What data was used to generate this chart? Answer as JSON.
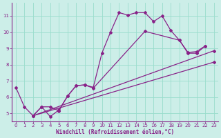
{
  "bg_color": "#cceee8",
  "grid_color": "#99ddcc",
  "line_color": "#882288",
  "spine_color": "#882288",
  "xlabel": "Windchill (Refroidissement éolien,°C)",
  "xlim": [
    -0.5,
    23.5
  ],
  "ylim": [
    4.5,
    11.8
  ],
  "xticks": [
    0,
    1,
    2,
    3,
    4,
    5,
    6,
    7,
    8,
    9,
    10,
    11,
    12,
    13,
    14,
    15,
    16,
    17,
    18,
    19,
    20,
    21,
    22,
    23
  ],
  "yticks": [
    5,
    6,
    7,
    8,
    9,
    10,
    11
  ],
  "series1": [
    [
      0,
      6.6
    ],
    [
      1,
      5.4
    ],
    [
      2,
      4.85
    ],
    [
      3,
      5.4
    ],
    [
      4,
      4.8
    ],
    [
      5,
      5.2
    ],
    [
      6,
      6.05
    ],
    [
      7,
      6.7
    ],
    [
      8,
      6.75
    ],
    [
      9,
      6.6
    ],
    [
      10,
      8.7
    ],
    [
      11,
      10.0
    ],
    [
      12,
      11.2
    ],
    [
      13,
      11.05
    ],
    [
      14,
      11.2
    ],
    [
      15,
      11.2
    ],
    [
      16,
      10.65
    ],
    [
      17,
      11.0
    ],
    [
      18,
      10.1
    ],
    [
      19,
      9.5
    ],
    [
      20,
      8.7
    ],
    [
      21,
      8.7
    ],
    [
      22,
      9.15
    ]
  ],
  "series2": [
    [
      2,
      4.85
    ],
    [
      3,
      5.4
    ],
    [
      4,
      5.4
    ],
    [
      5,
      5.15
    ],
    [
      6,
      6.05
    ],
    [
      7,
      6.7
    ],
    [
      8,
      6.75
    ],
    [
      9,
      6.55
    ],
    [
      15,
      10.05
    ],
    [
      19,
      9.5
    ],
    [
      20,
      8.75
    ],
    [
      21,
      8.8
    ],
    [
      22,
      9.15
    ]
  ],
  "series3_x": [
    2,
    23
  ],
  "series3_y": [
    4.85,
    8.15
  ],
  "series4_x": [
    2,
    23
  ],
  "series4_y": [
    4.85,
    8.85
  ],
  "lw": 0.9,
  "ms": 2.0,
  "tick_labelsize": 5.0,
  "xlabel_fontsize": 5.5
}
